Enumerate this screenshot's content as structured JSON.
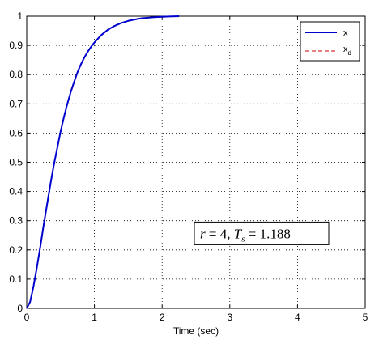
{
  "chart_data": {
    "type": "line",
    "title": "",
    "xlabel": "Time (sec)",
    "ylabel": "",
    "xlim": [
      0,
      5
    ],
    "ylim": [
      0,
      1
    ],
    "x_ticks": [
      "0",
      "1",
      "2",
      "3",
      "4",
      "5"
    ],
    "y_ticks": [
      "0",
      "0.1",
      "0.2",
      "0.3",
      "0.4",
      "0.5",
      "0.6",
      "0.7",
      "0.8",
      "0.9",
      "1"
    ],
    "grid": "dotted",
    "legend_position": "top-right",
    "series": [
      {
        "name": "x",
        "name_sub": "",
        "color": "#0000cc",
        "style": "solid",
        "x": [
          0,
          0.05,
          0.1,
          0.15,
          0.2,
          0.25,
          0.3,
          0.35,
          0.4,
          0.45,
          0.5,
          0.55,
          0.6,
          0.65,
          0.7,
          0.75,
          0.8,
          0.85,
          0.9,
          0.95,
          1.0,
          1.1,
          1.2,
          1.3,
          1.4,
          1.5,
          1.6,
          1.7,
          1.8,
          1.9,
          2.0,
          2.1,
          2.2,
          2.25
        ],
        "y": [
          0,
          0.022,
          0.075,
          0.14,
          0.21,
          0.285,
          0.355,
          0.425,
          0.49,
          0.548,
          0.605,
          0.655,
          0.7,
          0.74,
          0.775,
          0.808,
          0.835,
          0.858,
          0.878,
          0.895,
          0.91,
          0.935,
          0.954,
          0.967,
          0.977,
          0.984,
          0.989,
          0.993,
          0.995,
          0.997,
          0.998,
          0.999,
          0.9995,
          1.0
        ]
      },
      {
        "name": "x",
        "name_sub": "d",
        "color": "#cc0000",
        "style": "dashed",
        "x": [],
        "y": []
      }
    ],
    "annotation": {
      "r_symbol": "r",
      "r_value": "4",
      "ts_symbol": "T",
      "ts_sub": "s",
      "ts_value": "1.188",
      "x": 2.5,
      "y": 0.24
    }
  }
}
